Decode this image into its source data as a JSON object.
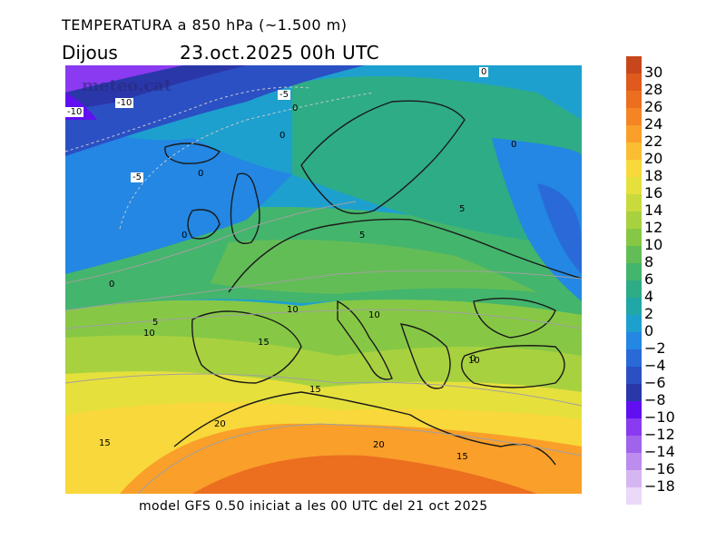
{
  "header": {
    "title": "TEMPERATURA a 850 hPa (~1.500 m)",
    "day": "Dijous",
    "date": "23.oct.2025 00h UTC"
  },
  "map": {
    "watermark": "meteo.cat",
    "contour_labels": [
      "-10",
      "-10",
      "-5",
      "-5",
      "0",
      "0",
      "0",
      "0",
      "0",
      "0",
      "0",
      "0",
      "5",
      "5",
      "5",
      "10",
      "10",
      "10",
      "10",
      "15",
      "15",
      "15",
      "20",
      "20",
      "15"
    ]
  },
  "footer": {
    "text": "model GFS 0.50 iniciat a les 00 UTC del 21 oct 2025"
  },
  "legend": {
    "items": [
      {
        "label": "30",
        "color": "#c8461c"
      },
      {
        "label": "28",
        "color": "#df5a1c"
      },
      {
        "label": "26",
        "color": "#ec6e1f"
      },
      {
        "label": "24",
        "color": "#f58524"
      },
      {
        "label": "22",
        "color": "#f99f2a"
      },
      {
        "label": "20",
        "color": "#fbbd32"
      },
      {
        "label": "18",
        "color": "#f8d83a"
      },
      {
        "label": "16",
        "color": "#e6e03c"
      },
      {
        "label": "14",
        "color": "#c9da3c"
      },
      {
        "label": "12",
        "color": "#a8d140"
      },
      {
        "label": "10",
        "color": "#86c845"
      },
      {
        "label": "8",
        "color": "#63bd57"
      },
      {
        "label": "6",
        "color": "#44b56c"
      },
      {
        "label": "4",
        "color": "#2eac86"
      },
      {
        "label": "2",
        "color": "#20a7a6"
      },
      {
        "label": "0",
        "color": "#1ea0cf"
      },
      {
        "label": "−2",
        "color": "#2387e3"
      },
      {
        "label": "−4",
        "color": "#2a6ad8"
      },
      {
        "label": "−6",
        "color": "#2a50c4"
      },
      {
        "label": "−8",
        "color": "#2a37a8"
      },
      {
        "label": "−10",
        "color": "#6010f0"
      },
      {
        "label": "−12",
        "color": "#8a3af0"
      },
      {
        "label": "−14",
        "color": "#a263ec"
      },
      {
        "label": "−16",
        "color": "#bc8cef"
      },
      {
        "label": "−18",
        "color": "#d6b6f2"
      },
      {
        "label": "",
        "color": "#ecd8f8"
      }
    ]
  }
}
